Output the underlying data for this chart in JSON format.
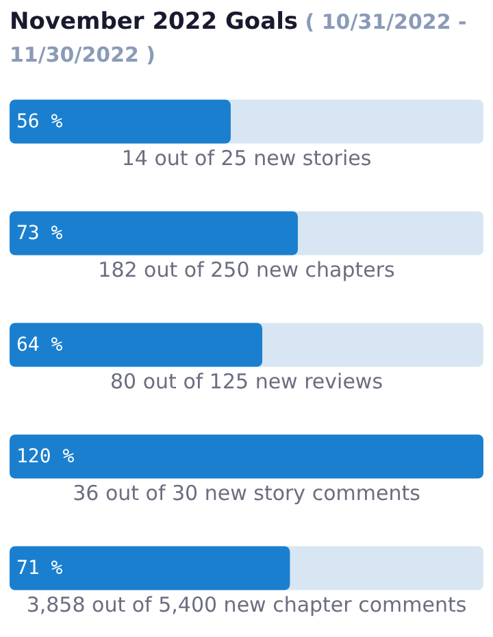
{
  "chart_data": {
    "type": "bar",
    "orientation": "horizontal",
    "title": "November 2022 Goals",
    "subtitle": "( 10/31/2022 - 11/30/2022 )",
    "categories": [
      "14 out of 25 new stories",
      "182 out of 250 new chapters",
      "80 out of 125 new reviews",
      "36 out of 30 new story comments",
      "3,858 out of 5,400 new chapter comments"
    ],
    "values": [
      56,
      73,
      64,
      120,
      71
    ],
    "value_labels": [
      "56 %",
      "73 %",
      "64 %",
      "120 %",
      "71 %"
    ],
    "color": "#1a7fcf",
    "xlim": [
      0,
      120
    ],
    "tick_labels": "y"
  }
}
